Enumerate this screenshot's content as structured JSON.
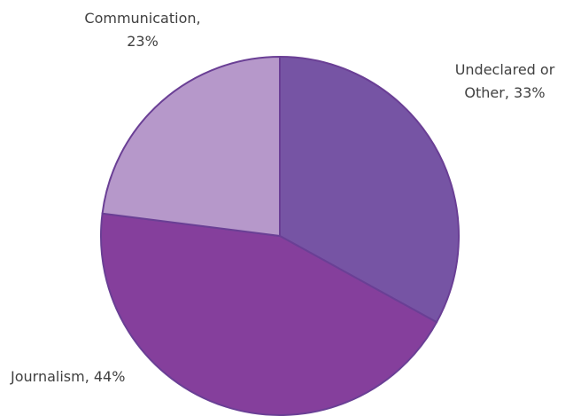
{
  "chart_data": {
    "type": "pie",
    "title": "",
    "legend": "none",
    "start_angle_deg": 0,
    "direction": "clockwise",
    "slices": [
      {
        "label": "Undeclared or Other",
        "value": 33,
        "color": "#7654a4",
        "text_lines": [
          "Undeclared or",
          "Other, 33%"
        ]
      },
      {
        "label": "Journalism",
        "value": 44,
        "color": "#853f9c",
        "text_lines": [
          "Journalism, 44%"
        ]
      },
      {
        "label": "Communication",
        "value": 23,
        "color": "#b698ca",
        "text_lines": [
          "Communication,",
          "23%"
        ]
      }
    ]
  }
}
